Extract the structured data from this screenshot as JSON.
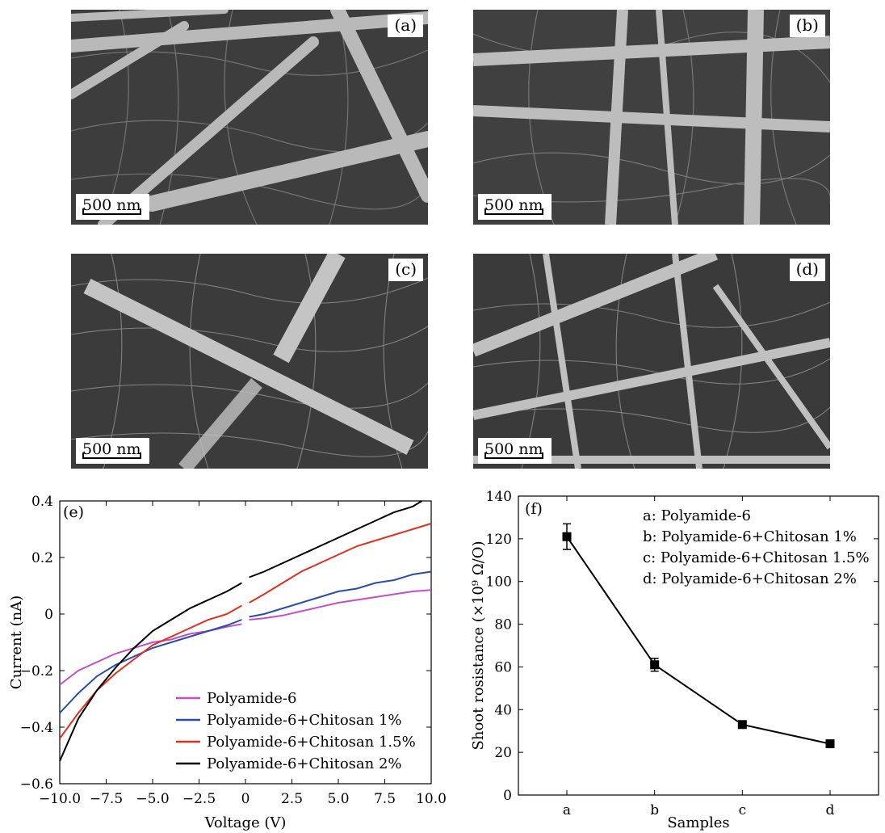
{
  "panels": [
    {
      "label": "(a)",
      "scale": "500 nm"
    },
    {
      "label": "(b)",
      "scale": "500 nm"
    },
    {
      "label": "(c)",
      "scale": "500 nm"
    },
    {
      "label": "(d)",
      "scale": "500 nm"
    }
  ],
  "chart_data": [
    {
      "type": "line",
      "panel_label": "(e)",
      "xlabel": "Voltage (V)",
      "ylabel": "Current (nA)",
      "xlim": [
        -10,
        10
      ],
      "ylim": [
        -0.6,
        0.4
      ],
      "xticks": [
        -10.0,
        -7.5,
        -5.0,
        -2.5,
        0,
        2.5,
        5.0,
        7.5,
        10.0
      ],
      "xtick_labels": [
        "−10.0",
        "−7.5",
        "−5.0",
        "−2.5",
        "0",
        "2.5",
        "5.0",
        "7.5",
        "10.0"
      ],
      "yticks": [
        -0.6,
        -0.4,
        -0.2,
        0,
        0.2,
        0.4
      ],
      "ytick_labels": [
        "−0.6",
        "−0.4",
        "−0.2",
        "0",
        "0.2",
        "0.4"
      ],
      "legend_position": "bottom-center",
      "series": [
        {
          "name": "Polyamide-6",
          "color": "#c050c8",
          "x": [
            -10,
            -9,
            -8,
            -7,
            -6,
            -5,
            -4,
            -3,
            -2,
            -1,
            -0.2,
            0.2,
            1,
            2,
            3,
            4,
            5,
            6,
            7,
            8,
            9,
            10
          ],
          "y": [
            -0.25,
            -0.2,
            -0.17,
            -0.14,
            -0.12,
            -0.1,
            -0.09,
            -0.07,
            -0.06,
            -0.045,
            -0.035,
            -0.02,
            -0.015,
            -0.005,
            0.01,
            0.025,
            0.04,
            0.05,
            0.06,
            0.07,
            0.08,
            0.085
          ]
        },
        {
          "name": "Polyamide-6+Chitosan 1%",
          "color": "#2a4ca8",
          "x": [
            -10,
            -9,
            -8,
            -7,
            -6,
            -5,
            -4,
            -3,
            -2,
            -1,
            -0.2,
            0.2,
            1,
            2,
            3,
            4,
            5,
            6,
            7,
            8,
            9,
            10
          ],
          "y": [
            -0.35,
            -0.28,
            -0.22,
            -0.18,
            -0.15,
            -0.12,
            -0.1,
            -0.08,
            -0.06,
            -0.04,
            -0.02,
            -0.01,
            0.0,
            0.02,
            0.04,
            0.06,
            0.08,
            0.09,
            0.11,
            0.12,
            0.14,
            0.15
          ]
        },
        {
          "name": "Polyamide-6+Chitosan 1.5%",
          "color": "#e03020",
          "x": [
            -10,
            -9,
            -8,
            -7,
            -6,
            -5,
            -4,
            -3,
            -2,
            -1,
            -0.2,
            0.2,
            1,
            2,
            3,
            4,
            5,
            6,
            7,
            8,
            9,
            10
          ],
          "y": [
            -0.44,
            -0.35,
            -0.27,
            -0.21,
            -0.16,
            -0.11,
            -0.08,
            -0.05,
            -0.02,
            0.0,
            0.03,
            0.04,
            0.07,
            0.11,
            0.15,
            0.18,
            0.21,
            0.24,
            0.26,
            0.28,
            0.3,
            0.32
          ]
        },
        {
          "name": "Polyamide-6+Chitosan 2%",
          "color": "#000000",
          "x": [
            -10,
            -9,
            -8,
            -7,
            -6,
            -5,
            -4,
            -3,
            -2,
            -1,
            -0.2,
            0.2,
            1,
            2,
            3,
            4,
            5,
            6,
            7,
            8,
            9,
            9.5
          ],
          "y": [
            -0.52,
            -0.37,
            -0.27,
            -0.19,
            -0.12,
            -0.06,
            -0.02,
            0.02,
            0.05,
            0.08,
            0.11,
            0.13,
            0.15,
            0.18,
            0.21,
            0.24,
            0.27,
            0.3,
            0.33,
            0.36,
            0.38,
            0.4
          ]
        }
      ]
    },
    {
      "type": "line",
      "panel_label": "(f)",
      "xlabel": "Samples",
      "ylabel": "Shoot rosistance (×10⁹ Ω/O)",
      "ylim": [
        0,
        140
      ],
      "yticks": [
        0,
        20,
        40,
        60,
        80,
        100,
        120,
        140
      ],
      "categories": [
        "a",
        "b",
        "c",
        "d"
      ],
      "values": [
        121,
        61,
        33,
        24
      ],
      "errors": [
        6,
        3,
        1,
        1
      ],
      "legend_position": "top-right",
      "annotations": [
        "a: Polyamide-6",
        "b: Polyamide-6+Chitosan 1%",
        "c: Polyamide-6+Chitosan 1.5%",
        "d: Polyamide-6+Chitosan 2%"
      ]
    }
  ]
}
